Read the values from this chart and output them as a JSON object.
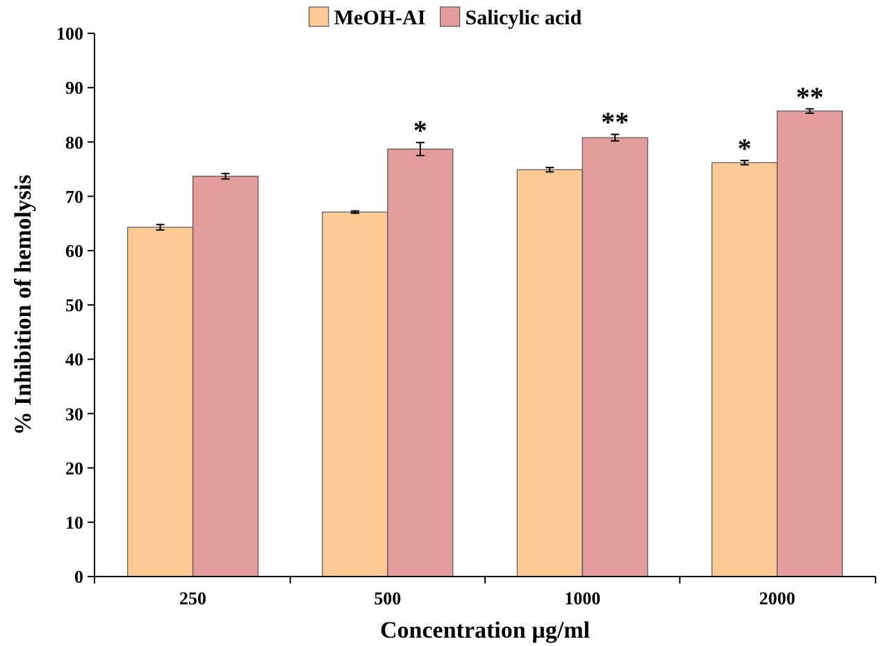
{
  "chart_data": {
    "type": "bar",
    "xlabel": "Concentration µg/ml",
    "ylabel": "% Inhibition of  hemolysis",
    "categories": [
      "250",
      "500",
      "1000",
      "2000"
    ],
    "series": [
      {
        "name": "MeOH-AI",
        "color": "#fdca96",
        "values": [
          64.3,
          67.1,
          74.9,
          76.2
        ],
        "errors": [
          0.5,
          0.2,
          0.4,
          0.4
        ]
      },
      {
        "name": "Salicylic acid",
        "color": "#e39b9b",
        "values": [
          73.7,
          78.7,
          80.8,
          85.7
        ],
        "errors": [
          0.5,
          1.2,
          0.6,
          0.4
        ]
      }
    ],
    "ylim": [
      0,
      100
    ],
    "yticks": [
      0,
      10,
      20,
      30,
      40,
      50,
      60,
      70,
      80,
      90,
      100
    ],
    "grid": false,
    "legend": "top",
    "annotations": [
      {
        "text": "*",
        "x": "500",
        "y": 78.7
      },
      {
        "text": "**",
        "x": "1000",
        "y": 80.8
      },
      {
        "text": "*",
        "x": "2000",
        "y": 76.2
      },
      {
        "text": "**",
        "x": "2000",
        "y": 85.7
      }
    ]
  }
}
